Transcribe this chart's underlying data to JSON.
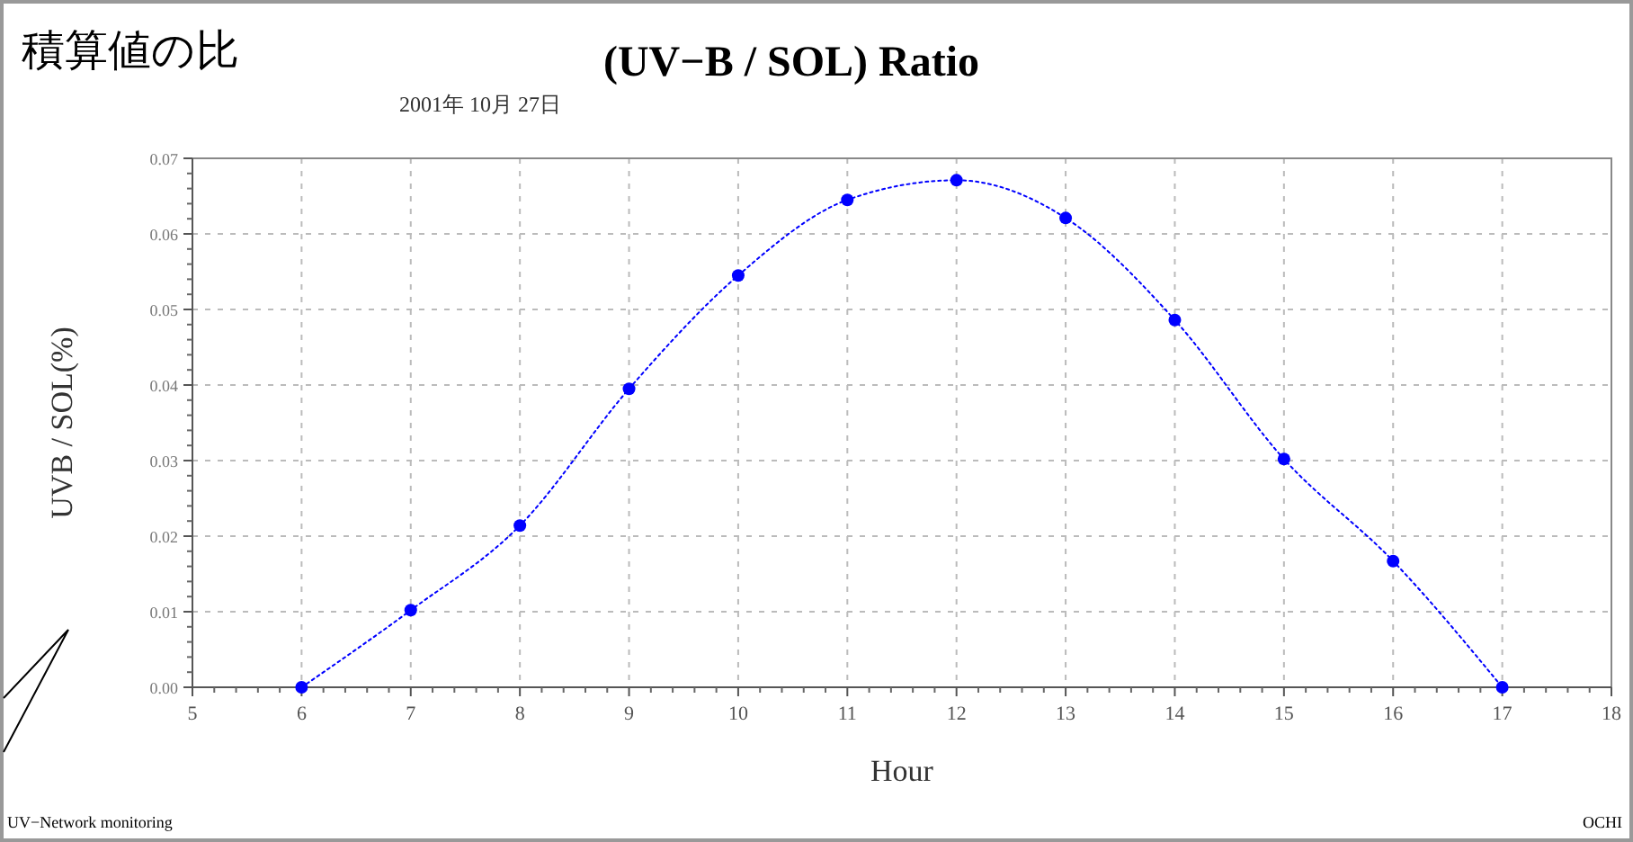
{
  "chart_data": {
    "type": "line",
    "title": "(UV−B / SOL) Ratio",
    "subtitle": "2001年 10月 27日",
    "xlabel": "Hour",
    "ylabel": "UVB / SOL(%)",
    "annotations": [
      "積算値の比",
      "UV−Network monitoring",
      "OCHI"
    ],
    "x": [
      6,
      7,
      8,
      9,
      10,
      11,
      12,
      13,
      14,
      15,
      16,
      17
    ],
    "series": [
      {
        "color": "#0000ff",
        "values": [
          0,
          0.0102,
          0.0214,
          0.0395,
          0.0545,
          0.0645,
          0.0671,
          0.0621,
          0.0486,
          0.0302,
          0.0167,
          0
        ]
      }
    ],
    "xlim": [
      5,
      18
    ],
    "xticks": [
      5,
      6,
      7,
      8,
      9,
      10,
      11,
      12,
      13,
      14,
      15,
      16,
      17,
      18
    ],
    "ylim": [
      0,
      0.07
    ],
    "yticks": [
      {
        "value": 0,
        "label": "0.00"
      },
      {
        "value": 0.01,
        "label": "0.01"
      },
      {
        "value": 0.02,
        "label": "0.02"
      },
      {
        "value": 0.03,
        "label": "0.03"
      },
      {
        "value": 0.04,
        "label": "0.04"
      },
      {
        "value": 0.05,
        "label": "0.05"
      },
      {
        "value": 0.06,
        "label": "0.06"
      },
      {
        "value": 0.07,
        "label": "0.07"
      }
    ],
    "grid": true,
    "marker": "circle",
    "line_style": "dotted"
  }
}
